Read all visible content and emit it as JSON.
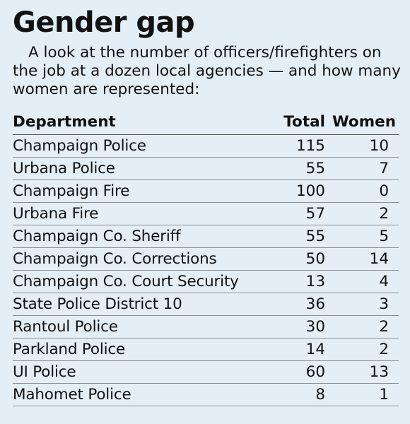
{
  "chart_data": {
    "type": "table",
    "title": "Gender gap",
    "subtitle": "A look at the number of officers/firefighters on the job at a dozen local agencies — and how many women are represented:",
    "columns": [
      "Department",
      "Total",
      "Women"
    ],
    "rows": [
      {
        "department": "Champaign Police",
        "total": 115,
        "women": 10
      },
      {
        "department": "Urbana Police",
        "total": 55,
        "women": 7
      },
      {
        "department": "Champaign Fire",
        "total": 100,
        "women": 0
      },
      {
        "department": "Urbana Fire",
        "total": 57,
        "women": 2
      },
      {
        "department": "Champaign Co. Sheriff",
        "total": 55,
        "women": 5
      },
      {
        "department": "Champaign Co. Corrections",
        "total": 50,
        "women": 14
      },
      {
        "department": "Champaign Co. Court Security",
        "total": 13,
        "women": 4
      },
      {
        "department": "State Police District 10",
        "total": 36,
        "women": 3
      },
      {
        "department": "Rantoul Police",
        "total": 30,
        "women": 2
      },
      {
        "department": "Parkland Police",
        "total": 14,
        "women": 2
      },
      {
        "department": "UI Police",
        "total": 60,
        "women": 13
      },
      {
        "department": "Mahomet Police",
        "total": 8,
        "women": 1
      }
    ],
    "colors": {
      "background": "#e4eef7",
      "text": "#111111",
      "rule": "#8a8f94"
    }
  }
}
